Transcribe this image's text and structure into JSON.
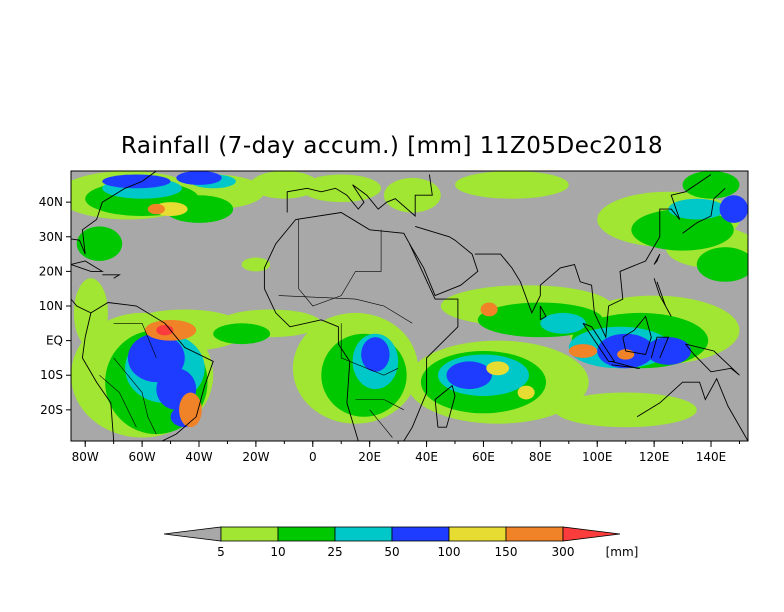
{
  "title": "Rainfall (7-day accum.) [mm] 11Z05Dec2018",
  "colors": {
    "land": "#a8a8a8",
    "below_5": "#a8a8a8",
    "c5_10": "#a0e632",
    "c10_25": "#00c800",
    "c25_50": "#00c8c8",
    "c50_100": "#1e3cff",
    "c100_150": "#e6dc32",
    "c150_300": "#f08228",
    "c300_plus": "#fa3c3c",
    "coast": "#000000"
  },
  "map": {
    "lon_range": [
      -85,
      153
    ],
    "lat_range": [
      -29,
      49
    ],
    "x_ticks": [
      "80W",
      "60W",
      "40W",
      "20W",
      "0",
      "20E",
      "40E",
      "60E",
      "80E",
      "100E",
      "120E",
      "140E"
    ],
    "x_tick_lons": [
      -80,
      -60,
      -40,
      -20,
      0,
      20,
      40,
      60,
      80,
      100,
      120,
      140
    ],
    "y_ticks": [
      "40N",
      "30N",
      "20N",
      "10N",
      "EQ",
      "10S",
      "20S"
    ],
    "y_tick_lats": [
      40,
      30,
      20,
      10,
      0,
      -10,
      -20
    ]
  },
  "colorbar": {
    "labels": [
      "5",
      "10",
      "25",
      "50",
      "100",
      "150",
      "300"
    ],
    "unit": "[mm]"
  }
}
